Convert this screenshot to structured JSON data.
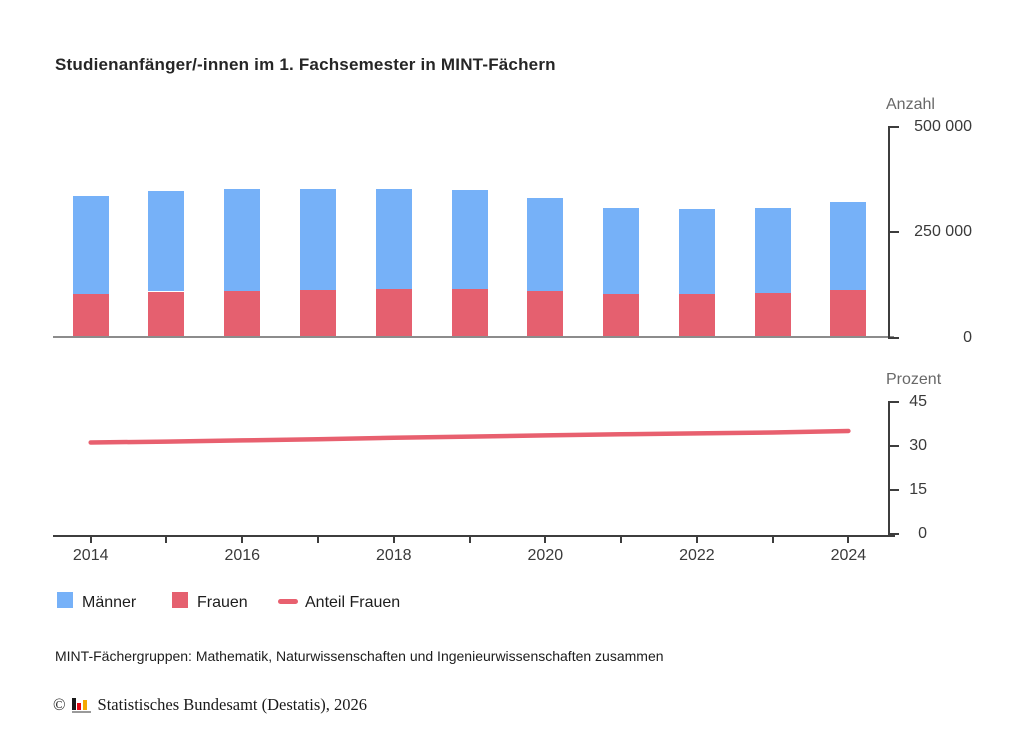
{
  "title": "Studienanfänger/-innen im 1. Fachsemester in MINT-Fächern",
  "chart_data": [
    {
      "type": "bar",
      "stacked": true,
      "title": "Studienanfänger/-innen im 1. Fachsemester in MINT-Fächern",
      "categories": [
        "2014",
        "2015",
        "2016",
        "2017",
        "2018",
        "2019",
        "2020",
        "2021",
        "2022",
        "2023",
        "2024"
      ],
      "series": [
        {
          "name": "Männer",
          "color": "#76b1f8",
          "values": [
            231000,
            239000,
            240000,
            239000,
            237000,
            234000,
            220000,
            204000,
            201000,
            202000,
            208000
          ]
        },
        {
          "name": "Frauen",
          "color": "#e5606f",
          "values": [
            104000,
            109000,
            111000,
            113000,
            115000,
            116000,
            111000,
            104000,
            104000,
            106000,
            112000
          ]
        }
      ],
      "stack_order_bottom_first": [
        "Frauen",
        "Männer"
      ],
      "xlabel": "",
      "ylabel": "Anzahl",
      "ylim": [
        0,
        500000
      ],
      "yticks": [
        0,
        250000,
        500000
      ],
      "ytick_labels": [
        "0",
        "250 000",
        "500 000"
      ],
      "grid": false,
      "axis_side": "right",
      "legend_position": "bottom"
    },
    {
      "type": "line",
      "x": [
        "2014",
        "2015",
        "2016",
        "2017",
        "2018",
        "2019",
        "2020",
        "2021",
        "2022",
        "2023",
        "2024"
      ],
      "series": [
        {
          "name": "Anteil Frauen",
          "color": "#e8606f",
          "values": [
            31.2,
            31.5,
            31.9,
            32.3,
            32.8,
            33.2,
            33.6,
            34.0,
            34.3,
            34.6,
            35.1
          ]
        }
      ],
      "xlabel": "",
      "ylabel": "Prozent",
      "ylim": [
        0,
        45
      ],
      "yticks": [
        0,
        15,
        30,
        45
      ],
      "ytick_labels": [
        "0",
        "15",
        "30",
        "45"
      ],
      "xtick_labels": [
        "2014",
        "2016",
        "2018",
        "2020",
        "2022",
        "2024"
      ],
      "grid": false,
      "axis_side": "right"
    }
  ],
  "legend": {
    "items": [
      {
        "label": "Männer",
        "swatch": "square",
        "color": "#76b1f8"
      },
      {
        "label": "Frauen",
        "swatch": "square",
        "color": "#e5606f"
      },
      {
        "label": "Anteil Frauen",
        "swatch": "line",
        "color": "#e8606f"
      }
    ]
  },
  "footnote": "MINT-Fächergruppen: Mathematik, Naturwissenschaften und Ingenieurwissenschaften zusammen",
  "copyright": {
    "symbol": "©",
    "text": "Statistisches Bundesamt (Destatis), 2026",
    "logo_icon": "destatis-bars-icon",
    "logo_colors": {
      "bar1": "#1a1a1a",
      "bar2": "#e30613",
      "bar3": "#f5a800",
      "base": "#9a9a9a"
    }
  },
  "colors": {
    "maenner_blue": "#76b1f8",
    "frauen_red": "#e5606f",
    "line_red": "#e8606f",
    "axis_dark": "#3d3d3d",
    "baseline_gray": "#8c8c8c",
    "tick_text": "#3a3a3a",
    "axis_title_gray": "#686868",
    "title_text": "#262626"
  }
}
